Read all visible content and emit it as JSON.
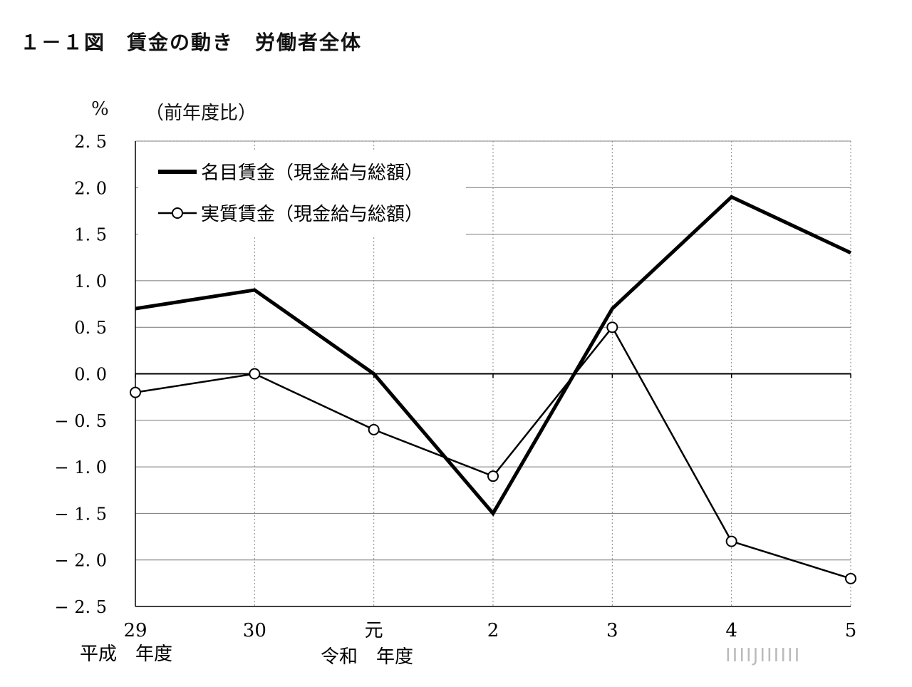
{
  "figure": {
    "title": "１－１図　賃金の動き　労働者全体",
    "unit": "%",
    "note": "（前年度比）",
    "era_labels": [
      "平成　年度",
      "令和　年度"
    ],
    "watermark": "IIIIJIIIIII"
  },
  "chart_data": {
    "type": "line",
    "x": [
      "29",
      "30",
      "元",
      "2",
      "3",
      "4",
      "5"
    ],
    "ylim": [
      -2.5,
      2.5
    ],
    "yticks": [
      "2.5",
      "2.0",
      "1.5",
      "1.0",
      "0.5",
      "0.0",
      "-0.5",
      "-1.0",
      "-1.5",
      "-2.0",
      "-2.5"
    ],
    "grid": true,
    "legend": "top-left",
    "series": [
      {
        "name": "名目賃金（現金給与総額）",
        "values": [
          0.7,
          0.9,
          0.0,
          -1.5,
          0.7,
          1.9,
          1.3
        ],
        "style": "thick",
        "color": "#000000"
      },
      {
        "name": "実質賃金（現金給与総額）",
        "values": [
          -0.2,
          0.0,
          -0.6,
          -1.1,
          0.5,
          -1.8,
          -2.2
        ],
        "style": "thin-circle",
        "color": "#000000"
      }
    ]
  }
}
